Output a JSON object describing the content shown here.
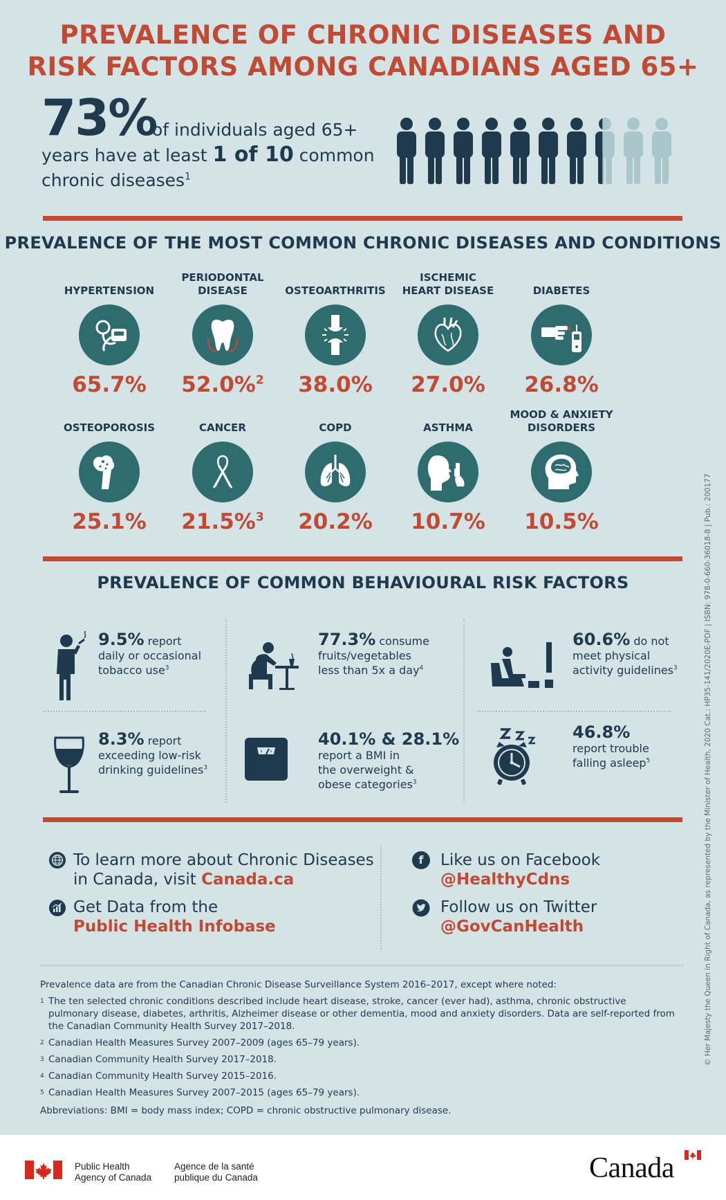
{
  "title": {
    "line1": "PREVALENCE OF CHRONIC DISEASES AND",
    "line2": "RISK FACTORS AMONG CANADIANS AGED 65+"
  },
  "headline": {
    "percent": "73%",
    "text_a": "of individuals aged 65+",
    "text_b": "years have at least",
    "text_bold": "1 of 10",
    "text_c": "common",
    "text_d": "chronic diseases",
    "footnote": "1",
    "people_total": 10,
    "people_filled_fraction": 0.73
  },
  "diseases_section": {
    "title": "PREVALENCE OF THE MOST COMMON CHRONIC DISEASES AND CONDITIONS",
    "items": [
      {
        "name_l1": "",
        "name_l2": "HYPERTENSION",
        "value": "65.7%",
        "sup": "",
        "icon": "blood-pressure-icon"
      },
      {
        "name_l1": "PERIODONTAL",
        "name_l2": "DISEASE",
        "value": "52.0%",
        "sup": "2",
        "icon": "tooth-icon"
      },
      {
        "name_l1": "",
        "name_l2": "OSTEOARTHRITIS",
        "value": "38.0%",
        "sup": "",
        "icon": "joint-icon"
      },
      {
        "name_l1": "ISCHEMIC",
        "name_l2": "HEART DISEASE",
        "value": "27.0%",
        "sup": "",
        "icon": "heart-icon"
      },
      {
        "name_l1": "",
        "name_l2": "DIABETES",
        "value": "26.8%",
        "sup": "",
        "icon": "glucose-meter-icon"
      },
      {
        "name_l1": "",
        "name_l2": "OSTEOPOROSIS",
        "value": "25.1%",
        "sup": "",
        "icon": "bone-icon"
      },
      {
        "name_l1": "",
        "name_l2": "CANCER",
        "value": "21.5%",
        "sup": "3",
        "icon": "ribbon-icon"
      },
      {
        "name_l1": "",
        "name_l2": "COPD",
        "value": "20.2%",
        "sup": "",
        "icon": "lungs-icon"
      },
      {
        "name_l1": "",
        "name_l2": "ASTHMA",
        "value": "10.7%",
        "sup": "",
        "icon": "inhaler-icon"
      },
      {
        "name_l1": "MOOD & ANXIETY",
        "name_l2": "DISORDERS",
        "value": "10.5%",
        "sup": "",
        "icon": "brain-icon"
      }
    ]
  },
  "risk_section": {
    "title": "PREVALENCE OF COMMON BEHAVIOURAL RISK FACTORS",
    "items": [
      {
        "num": "9.5%",
        "after": "report",
        "l2": "daily or occasional",
        "l3": "tobacco use",
        "sup": "3",
        "l4": "",
        "icon": "smoking-icon"
      },
      {
        "num": "77.3%",
        "after": "consume",
        "l2": "fruits/vegetables",
        "l3": "less than 5x a day",
        "sup": "4",
        "l4": "",
        "icon": "eating-icon"
      },
      {
        "num": "60.6%",
        "after": "do not",
        "l2": "meet physical",
        "l3": "activity guidelines",
        "sup": "3",
        "l4": "",
        "icon": "sedentary-icon"
      },
      {
        "num": "8.3%",
        "after": "report",
        "l2": "exceeding low-risk",
        "l3": "drinking guidelines",
        "sup": "3",
        "l4": "",
        "icon": "wine-glass-icon"
      },
      {
        "num": "40.1% & 28.1%",
        "after": "",
        "l2": "report a BMI in",
        "l3": "the overweight &",
        "l4": "obese categories",
        "sup": "3",
        "icon": "scale-icon"
      },
      {
        "num": "46.8%",
        "after": "",
        "l2": "report trouble",
        "l3": "falling asleep",
        "sup": "5",
        "l4": "",
        "icon": "alarm-clock-icon"
      }
    ]
  },
  "links": {
    "learn_l1": "To learn more about Chronic Diseases",
    "learn_l2": "in Canada, visit",
    "learn_link": "Canada.ca",
    "data_l1": "Get Data from the",
    "data_link": "Public Health Infobase",
    "fb_l1": "Like us on Facebook",
    "fb_handle": "@HealthyCdns",
    "tw_l1": "Follow us on Twitter",
    "tw_handle": "@GovCanHealth"
  },
  "notes": {
    "intro": "Prevalence data are from the Canadian Chronic Disease Surveillance System 2016–2017, except where noted:",
    "footnotes": [
      {
        "mark": "1",
        "text": "The ten selected chronic conditions described include heart disease, stroke, cancer (ever had), asthma, chronic obstructive pulmonary disease, diabetes, arthritis, Alzheimer disease or other dementia, mood and anxiety disorders. Data are self-reported from the Canadian Community Health Survey 2017–2018."
      },
      {
        "mark": "2",
        "text": "Canadian Health Measures Survey 2007–2009 (ages 65–79 years)."
      },
      {
        "mark": "3",
        "text": "Canadian Community Health Survey 2017–2018."
      },
      {
        "mark": "4",
        "text": "Canadian Community Health Survey 2015–2016."
      },
      {
        "mark": "5",
        "text": "Canadian Health Measures Survey 2007–2015 (ages 65–79 years)."
      }
    ],
    "abbr": "Abbreviations: BMI = body mass index; COPD = chronic obstructive pulmonary disease."
  },
  "side_text": "© Her Majesty the Queen in Right of Canada, as represented by the Minister of Health, 2020   Cat.: HP35-141/2020E-PDF | ISBN: 978-0-660-36018-8 | Pub.: 200177",
  "footer": {
    "en_l1": "Public Health",
    "en_l2": "Agency of Canada",
    "fr_l1": "Agence de la santé",
    "fr_l2": "publique du Canada",
    "wordmark": "Canada"
  },
  "colors": {
    "accent": "#c04a34",
    "navy": "#1f3a4d",
    "teal": "#2e6c70",
    "background": "#d3e3e6",
    "faded": "#a9c6ca"
  }
}
